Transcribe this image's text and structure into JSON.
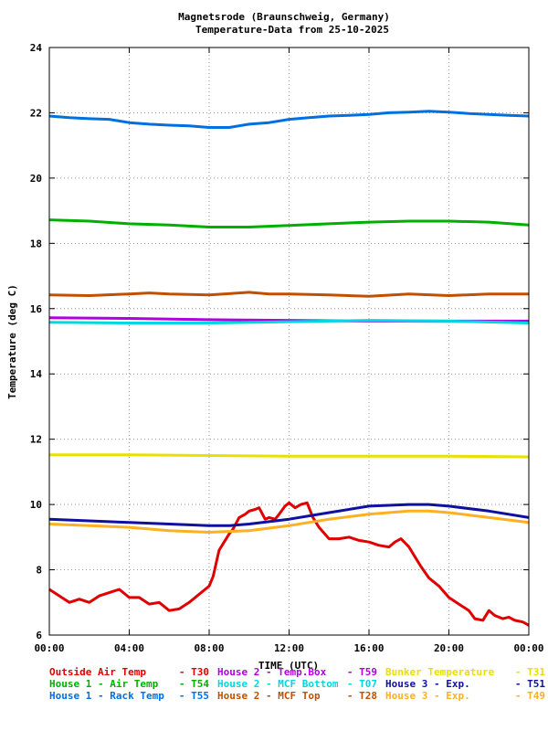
{
  "chart_data": {
    "type": "line",
    "title": "Magnetsrode (Braunschweig, Germany)",
    "subtitle": "Temperature-Data from 25-10-2025",
    "xlabel": "TIME (UTC)",
    "ylabel": "Temperature (deg C)",
    "xlim": [
      0,
      24
    ],
    "ylim": [
      6,
      24
    ],
    "xticks": [
      {
        "x": 0,
        "label": "00:00"
      },
      {
        "x": 4,
        "label": "04:00"
      },
      {
        "x": 8,
        "label": "08:00"
      },
      {
        "x": 12,
        "label": "12:00"
      },
      {
        "x": 16,
        "label": "16:00"
      },
      {
        "x": 20,
        "label": "20:00"
      },
      {
        "x": 24,
        "label": "00:00"
      }
    ],
    "yticks": [
      {
        "y": 6,
        "label": "6"
      },
      {
        "y": 8,
        "label": "8"
      },
      {
        "y": 10,
        "label": "10"
      },
      {
        "y": 12,
        "label": "12"
      },
      {
        "y": 14,
        "label": "14"
      },
      {
        "y": 16,
        "label": "16"
      },
      {
        "y": 18,
        "label": "18"
      },
      {
        "y": 20,
        "label": "20"
      },
      {
        "y": 22,
        "label": "22"
      },
      {
        "y": 24,
        "label": "24"
      }
    ],
    "grid": true,
    "legend_position": "bottom",
    "series": [
      {
        "name": "Outside Air Temp",
        "code": "T30",
        "color": "#e00000",
        "x": [
          0,
          0.5,
          1,
          1.5,
          2,
          2.5,
          3,
          3.5,
          4,
          4.5,
          5,
          5.5,
          6,
          6.5,
          7,
          7.5,
          8,
          8.2,
          8.5,
          8.8,
          9,
          9.2,
          9.5,
          9.8,
          10,
          10.3,
          10.5,
          10.8,
          11,
          11.3,
          11.5,
          11.8,
          12,
          12.3,
          12.6,
          12.9,
          13.2,
          13.5,
          14,
          14.5,
          15,
          15.5,
          16,
          16.5,
          17,
          17.3,
          17.6,
          18,
          18.3,
          18.6,
          19,
          19.5,
          20,
          20.5,
          21,
          21.3,
          21.7,
          22,
          22.3,
          22.7,
          23,
          23.3,
          23.7,
          24
        ],
        "y": [
          7.4,
          7.2,
          7.0,
          7.1,
          7.0,
          7.2,
          7.3,
          7.4,
          7.15,
          7.15,
          6.95,
          7.0,
          6.75,
          6.8,
          7.0,
          7.25,
          7.5,
          7.8,
          8.6,
          8.9,
          9.1,
          9.25,
          9.6,
          9.7,
          9.8,
          9.85,
          9.9,
          9.55,
          9.6,
          9.55,
          9.7,
          9.95,
          10.05,
          9.9,
          10.0,
          10.05,
          9.6,
          9.3,
          8.95,
          8.95,
          9.0,
          8.9,
          8.85,
          8.75,
          8.7,
          8.85,
          8.95,
          8.7,
          8.4,
          8.1,
          7.75,
          7.5,
          7.15,
          6.95,
          6.75,
          6.5,
          6.45,
          6.75,
          6.6,
          6.5,
          6.55,
          6.45,
          6.4,
          6.3
        ]
      },
      {
        "name": "House 2 - Temp.Box",
        "code": "T59",
        "color": "#b000e0",
        "x": [
          0,
          4,
          8,
          12,
          16,
          20,
          24
        ],
        "y": [
          15.72,
          15.7,
          15.66,
          15.64,
          15.62,
          15.62,
          15.62
        ]
      },
      {
        "name": "Bunker Temperature",
        "code": "T31",
        "color": "#e8e000",
        "x": [
          0,
          4,
          8,
          12,
          16,
          20,
          24
        ],
        "y": [
          11.52,
          11.52,
          11.5,
          11.48,
          11.48,
          11.48,
          11.46
        ]
      },
      {
        "name": "House 1 - Air  Temp",
        "code": "T54",
        "color": "#00b000",
        "x": [
          0,
          2,
          4,
          6,
          8,
          10,
          12,
          14,
          16,
          18,
          20,
          22,
          24
        ],
        "y": [
          18.72,
          18.68,
          18.6,
          18.56,
          18.5,
          18.5,
          18.55,
          18.6,
          18.65,
          18.68,
          18.68,
          18.65,
          18.56
        ]
      },
      {
        "name": "House 2 - MCF Bottom",
        "code": "T07",
        "color": "#00d8e0",
        "x": [
          0,
          4,
          8,
          12,
          16,
          20,
          24
        ],
        "y": [
          15.58,
          15.56,
          15.56,
          15.6,
          15.64,
          15.62,
          15.56
        ]
      },
      {
        "name": "House 3 - Exp.",
        "code": "T51",
        "color": "#1010a0",
        "x": [
          0,
          2,
          4,
          6,
          8,
          9,
          10,
          12,
          14,
          16,
          18,
          19,
          20,
          22,
          24
        ],
        "y": [
          9.55,
          9.5,
          9.45,
          9.4,
          9.35,
          9.35,
          9.4,
          9.55,
          9.75,
          9.95,
          10.0,
          10.0,
          9.95,
          9.8,
          9.6
        ]
      },
      {
        "name": "House 1 - Rack Temp",
        "code": "T55",
        "color": "#0070e0",
        "x": [
          0,
          1,
          2,
          3,
          4,
          5,
          6,
          7,
          8,
          9,
          10,
          11,
          12,
          13,
          14,
          15,
          16,
          17,
          18,
          19,
          20,
          21,
          22,
          23,
          24
        ],
        "y": [
          21.9,
          21.85,
          21.82,
          21.8,
          21.7,
          21.65,
          21.62,
          21.6,
          21.55,
          21.55,
          21.65,
          21.7,
          21.8,
          21.85,
          21.9,
          21.92,
          21.95,
          22.0,
          22.02,
          22.05,
          22.02,
          21.98,
          21.95,
          21.92,
          21.9
        ]
      },
      {
        "name": "House 2 - MCF Top",
        "code": "T28",
        "color": "#c05000",
        "x": [
          0,
          2,
          4,
          5,
          6,
          8,
          10,
          11,
          12,
          14,
          16,
          18,
          20,
          22,
          24
        ],
        "y": [
          16.42,
          16.4,
          16.45,
          16.48,
          16.45,
          16.42,
          16.5,
          16.45,
          16.45,
          16.42,
          16.38,
          16.45,
          16.4,
          16.45,
          16.45
        ]
      },
      {
        "name": "House 3 - Exp.",
        "code": "T49",
        "color": "#ffb020",
        "x": [
          0,
          2,
          4,
          6,
          8,
          10,
          12,
          14,
          16,
          18,
          19,
          20,
          22,
          24
        ],
        "y": [
          9.4,
          9.35,
          9.3,
          9.2,
          9.15,
          9.2,
          9.35,
          9.55,
          9.7,
          9.8,
          9.8,
          9.75,
          9.6,
          9.45
        ]
      }
    ]
  },
  "legend_rows": [
    [
      0,
      1,
      2
    ],
    [
      3,
      4,
      5
    ],
    [
      6,
      7,
      8
    ]
  ]
}
